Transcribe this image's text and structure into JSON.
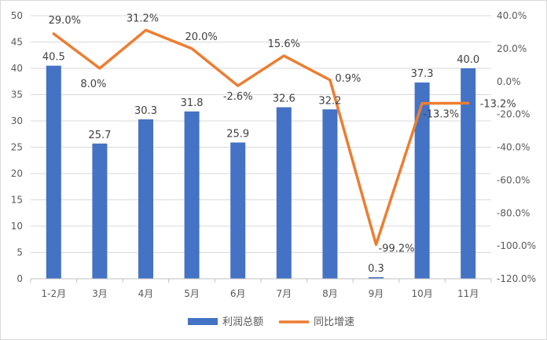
{
  "chart_data": {
    "type": "bar+line",
    "categories": [
      "1-2月",
      "3月",
      "4月",
      "5月",
      "6月",
      "7月",
      "8月",
      "9月",
      "10月",
      "11月"
    ],
    "series": [
      {
        "name": "利润总额",
        "type": "bar",
        "axis": "left",
        "color": "#4472C4",
        "values": [
          40.5,
          25.7,
          30.3,
          31.8,
          25.9,
          32.6,
          32.2,
          0.3,
          37.3,
          40.0
        ],
        "labels": [
          "40.5",
          "25.7",
          "30.3",
          "31.8",
          "25.9",
          "32.6",
          "32.2",
          "0.3",
          "37.3",
          "40.0"
        ]
      },
      {
        "name": "同比增速",
        "type": "line",
        "axis": "right",
        "color": "#ED7D31",
        "values": [
          29.0,
          8.0,
          31.2,
          20.0,
          -2.6,
          15.6,
          0.9,
          -99.2,
          -13.3,
          -13.2
        ],
        "labels": [
          "29.0%",
          "8.0%",
          "31.2%",
          "20.0%",
          "-2.6%",
          "15.6%",
          "0.9%",
          "-99.2%",
          "-13.3%",
          "-13.2%"
        ]
      }
    ],
    "y_left": {
      "min": 0,
      "max": 50,
      "step": 5,
      "ticks": [
        "0",
        "5",
        "10",
        "15",
        "20",
        "25",
        "30",
        "35",
        "40",
        "45",
        "50"
      ]
    },
    "y_right": {
      "min": -120,
      "max": 40,
      "step": 20,
      "ticks": [
        "-120.0%",
        "-100.0%",
        "-80.0%",
        "-60.0%",
        "-40.0%",
        "-20.0%",
        "0.0%",
        "20.0%",
        "40.0%"
      ]
    },
    "grid": true,
    "legend_position": "bottom"
  }
}
